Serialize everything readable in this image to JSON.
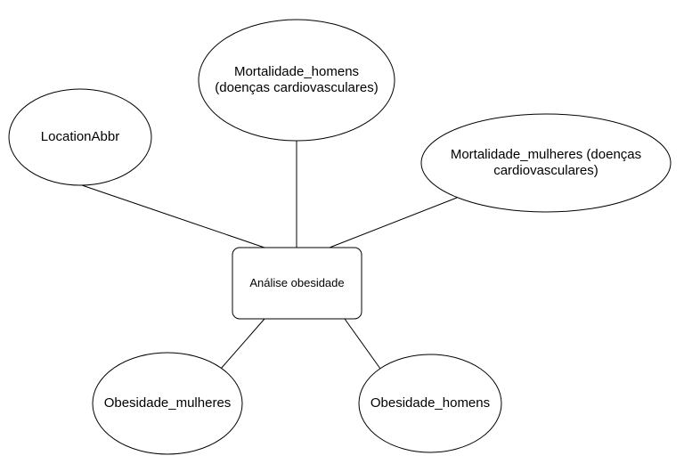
{
  "diagram": {
    "center": {
      "label": "Análise obesidade"
    },
    "nodes": {
      "location_abbr": {
        "label": "LocationAbbr"
      },
      "mortalidade_homens": {
        "line1": "Mortalidade_homens",
        "line2": "(doenças cardiovasculares)"
      },
      "mortalidade_mulheres": {
        "line1": "Mortalidade_mulheres (doenças",
        "line2": "cardiovasculares)"
      },
      "obesidade_mulheres": {
        "label": "Obesidade_mulheres"
      },
      "obesidade_homens": {
        "label": "Obesidade_homens"
      }
    }
  }
}
